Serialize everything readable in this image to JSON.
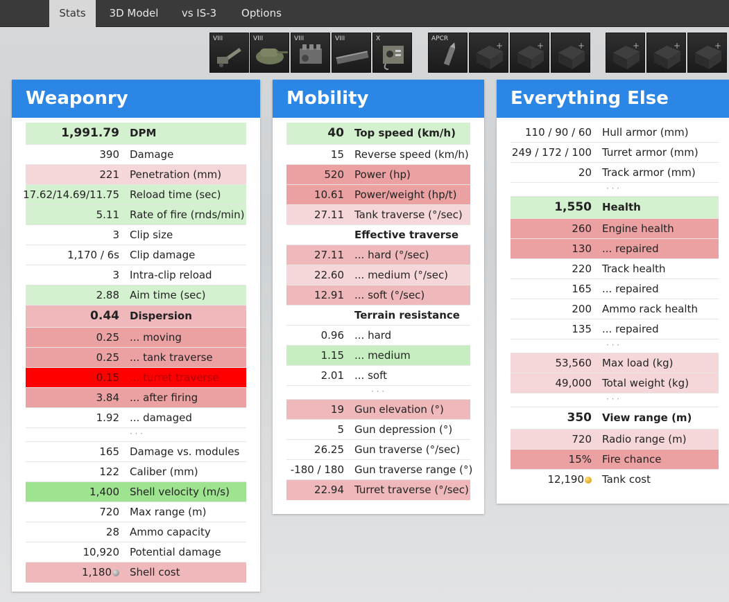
{
  "tabs": [
    {
      "label": "Stats",
      "active": true
    },
    {
      "label": "3D Model",
      "active": false
    },
    {
      "label": "vs IS-3",
      "active": false
    },
    {
      "label": "Options",
      "active": false
    }
  ],
  "modules": [
    {
      "tier": "VIII",
      "icon": "gun-icon"
    },
    {
      "tier": "VIII",
      "icon": "turret-icon"
    },
    {
      "tier": "VIII",
      "icon": "engine-icon"
    },
    {
      "tier": "VIII",
      "icon": "tracks-icon"
    },
    {
      "tier": "X",
      "icon": "radio-icon"
    }
  ],
  "shells": [
    {
      "tier": "APCR",
      "icon": "shell-icon"
    }
  ],
  "weaponry": {
    "title": "Weaponry",
    "rows": [
      {
        "value": "1,991.79",
        "label": "DPM"
      },
      {
        "value": "390",
        "label": "Damage"
      },
      {
        "value": "221",
        "label": "Penetration (mm)"
      },
      {
        "value": "17.62/14.69/11.75",
        "label": "Reload time (sec)"
      },
      {
        "value": "5.11",
        "label": "Rate of fire (rnds/min)"
      },
      {
        "value": "3",
        "label": "Clip size"
      },
      {
        "value": "1,170 / 6s",
        "label": "Clip damage"
      },
      {
        "value": "3",
        "label": "Intra-clip reload"
      },
      {
        "value": "2.88",
        "label": "Aim time (sec)"
      },
      {
        "value": "0.44",
        "label": "Dispersion"
      },
      {
        "value": "0.25",
        "label": "... moving"
      },
      {
        "value": "0.25",
        "label": "... tank traverse"
      },
      {
        "value": "0.15",
        "label": "... turret traverse"
      },
      {
        "value": "3.84",
        "label": "... after firing"
      },
      {
        "value": "1.92",
        "label": "... damaged"
      },
      {
        "value": "· · ·",
        "label": ""
      },
      {
        "value": "165",
        "label": "Damage vs. modules"
      },
      {
        "value": "122",
        "label": "Caliber (mm)"
      },
      {
        "value": "1,400",
        "label": "Shell velocity (m/s)"
      },
      {
        "value": "720",
        "label": "Max range (m)"
      },
      {
        "value": "28",
        "label": "Ammo capacity"
      },
      {
        "value": "10,920",
        "label": "Potential damage"
      },
      {
        "value": "1,180",
        "label": "Shell cost"
      }
    ]
  },
  "mobility": {
    "title": "Mobility",
    "rows": [
      {
        "value": "40",
        "label": "Top speed (km/h)"
      },
      {
        "value": "15",
        "label": "Reverse speed (km/h)"
      },
      {
        "value": "520",
        "label": "Power (hp)"
      },
      {
        "value": "10.61",
        "label": "Power/weight (hp/t)"
      },
      {
        "value": "27.11",
        "label": "Tank traverse (°/sec)"
      },
      {
        "value": "",
        "label": "Effective traverse"
      },
      {
        "value": "27.11",
        "label": "... hard (°/sec)"
      },
      {
        "value": "22.60",
        "label": "... medium (°/sec)"
      },
      {
        "value": "12.91",
        "label": "... soft (°/sec)"
      },
      {
        "value": "",
        "label": "Terrain resistance"
      },
      {
        "value": "0.96",
        "label": "... hard"
      },
      {
        "value": "1.15",
        "label": "... medium"
      },
      {
        "value": "2.01",
        "label": "... soft"
      },
      {
        "value": "· · ·",
        "label": ""
      },
      {
        "value": "19",
        "label": "Gun elevation (°)"
      },
      {
        "value": "5",
        "label": "Gun depression (°)"
      },
      {
        "value": "26.25",
        "label": "Gun traverse (°/sec)"
      },
      {
        "value": "-180 / 180",
        "label": "Gun traverse range (°)"
      },
      {
        "value": "22.94",
        "label": "Turret traverse (°/sec)"
      }
    ]
  },
  "else": {
    "title": "Everything Else",
    "rows": [
      {
        "value": "110 / 90 / 60",
        "label": "Hull armor (mm)"
      },
      {
        "value": "249 / 172 / 100",
        "label": "Turret armor (mm)"
      },
      {
        "value": "20",
        "label": "Track armor (mm)"
      },
      {
        "value": "· · ·",
        "label": ""
      },
      {
        "value": "1,550",
        "label": "Health"
      },
      {
        "value": "260",
        "label": "Engine health"
      },
      {
        "value": "130",
        "label": "... repaired"
      },
      {
        "value": "220",
        "label": "Track health"
      },
      {
        "value": "165",
        "label": "... repaired"
      },
      {
        "value": "200",
        "label": "Ammo rack health"
      },
      {
        "value": "135",
        "label": "... repaired"
      },
      {
        "value": "· · ·",
        "label": ""
      },
      {
        "value": "53,560",
        "label": "Max load (kg)"
      },
      {
        "value": "49,000",
        "label": "Total weight (kg)"
      },
      {
        "value": "· · ·",
        "label": ""
      },
      {
        "value": "350",
        "label": "View range (m)"
      },
      {
        "value": "720",
        "label": "Radio range (m)"
      },
      {
        "value": "15%",
        "label": "Fire chance"
      },
      {
        "value": "12,190",
        "label": "Tank cost"
      }
    ]
  }
}
